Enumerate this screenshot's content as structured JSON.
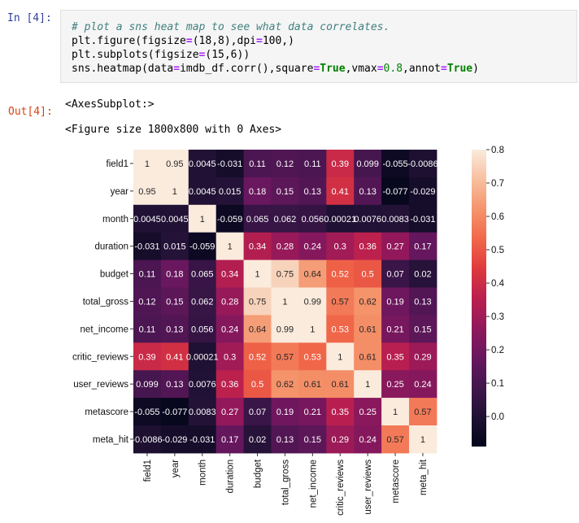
{
  "cell_in": {
    "prompt": "In [4]:",
    "code": {
      "comment": "# plot a sns heat map to see what data correlates.",
      "line1_a": "plt.figure(figsize",
      "line1_eq": "=",
      "line1_b": "(18,8),dpi",
      "line1_eq2": "=",
      "line1_c": "100,)",
      "line2_a": "plt.subplots(figsize",
      "line2_eq": "=",
      "line2_b": "(15,6))",
      "line3_a": "sns.heatmap(data",
      "line3_eq": "=",
      "line3_b": "imdb_df.corr(),square",
      "line3_eq2": "=",
      "line3_true1": "True",
      "line3_c": ",vmax",
      "line3_eq3": "=",
      "line3_num": "0.8",
      "line3_d": ",annot",
      "line3_eq4": "=",
      "line3_true2": "True",
      "line3_e": ")"
    }
  },
  "cell_out": {
    "prompt": "Out[4]:",
    "text1": "<AxesSubplot:>",
    "text2": "<Figure size 1800x800 with 0 Axes>"
  },
  "chart_data": {
    "type": "heatmap",
    "title": "",
    "variables": [
      "field1",
      "year",
      "month",
      "duration",
      "budget",
      "total_gross",
      "net_income",
      "critic_reviews",
      "user_reviews",
      "metascore",
      "meta_hit"
    ],
    "values": [
      [
        1,
        0.95,
        0.0045,
        -0.031,
        0.11,
        0.12,
        0.11,
        0.39,
        0.099,
        -0.055,
        -0.0086
      ],
      [
        0.95,
        1,
        0.0045,
        0.015,
        0.18,
        0.15,
        0.13,
        0.41,
        0.13,
        -0.077,
        -0.029
      ],
      [
        0.0045,
        0.0045,
        1,
        -0.059,
        0.065,
        0.062,
        0.056,
        0.00021,
        0.0076,
        0.0083,
        -0.031
      ],
      [
        -0.031,
        0.015,
        -0.059,
        1,
        0.34,
        0.28,
        0.24,
        0.3,
        0.36,
        0.27,
        0.17
      ],
      [
        0.11,
        0.18,
        0.065,
        0.34,
        1,
        0.75,
        0.64,
        0.52,
        0.5,
        0.07,
        0.02
      ],
      [
        0.12,
        0.15,
        0.062,
        0.28,
        0.75,
        1,
        0.99,
        0.57,
        0.62,
        0.19,
        0.13
      ],
      [
        0.11,
        0.13,
        0.056,
        0.24,
        0.64,
        0.99,
        1,
        0.53,
        0.61,
        0.21,
        0.15
      ],
      [
        0.39,
        0.41,
        0.00021,
        0.3,
        0.52,
        0.57,
        0.53,
        1,
        0.61,
        0.35,
        0.29
      ],
      [
        0.099,
        0.13,
        0.0076,
        0.36,
        0.5,
        0.62,
        0.61,
        0.61,
        1,
        0.25,
        0.24
      ],
      [
        -0.055,
        -0.077,
        0.0083,
        0.27,
        0.07,
        0.19,
        0.21,
        0.35,
        0.25,
        1,
        0.57
      ],
      [
        -0.0086,
        -0.029,
        -0.031,
        0.17,
        0.02,
        0.13,
        0.15,
        0.29,
        0.24,
        0.57,
        1
      ]
    ],
    "annotations": [
      [
        "1",
        "0.95",
        "0.0045",
        "-0.031",
        "0.11",
        "0.12",
        "0.11",
        "0.39",
        "0.099",
        "-0.055",
        "-0.0086"
      ],
      [
        "0.95",
        "1",
        "0.0045",
        "0.015",
        "0.18",
        "0.15",
        "0.13",
        "0.41",
        "0.13",
        "-0.077",
        "-0.029"
      ],
      [
        "0.0045",
        "0.0045",
        "1",
        "-0.059",
        "0.065",
        "0.062",
        "0.056",
        "0.00021",
        "0.0076",
        "0.0083",
        "-0.031"
      ],
      [
        "-0.031",
        "0.015",
        "-0.059",
        "1",
        "0.34",
        "0.28",
        "0.24",
        "0.3",
        "0.36",
        "0.27",
        "0.17"
      ],
      [
        "0.11",
        "0.18",
        "0.065",
        "0.34",
        "1",
        "0.75",
        "0.64",
        "0.52",
        "0.5",
        "0.07",
        "0.02"
      ],
      [
        "0.12",
        "0.15",
        "0.062",
        "0.28",
        "0.75",
        "1",
        "0.99",
        "0.57",
        "0.62",
        "0.19",
        "0.13"
      ],
      [
        "0.11",
        "0.13",
        "0.056",
        "0.24",
        "0.64",
        "0.99",
        "1",
        "0.53",
        "0.61",
        "0.21",
        "0.15"
      ],
      [
        "0.39",
        "0.41",
        "0.00021",
        "0.3",
        "0.52",
        "0.57",
        "0.53",
        "1",
        "0.61",
        "0.35",
        "0.29"
      ],
      [
        "0.099",
        "0.13",
        "0.0076",
        "0.36",
        "0.5",
        "0.62",
        "0.61",
        "0.61",
        "1",
        "0.25",
        "0.24"
      ],
      [
        "-0.055",
        "-0.077",
        "0.0083",
        "0.27",
        "0.07",
        "0.19",
        "0.21",
        "0.35",
        "0.25",
        "1",
        "0.57"
      ],
      [
        "-0.0086",
        "-0.029",
        "-0.031",
        "0.17",
        "0.02",
        "0.13",
        "0.15",
        "0.29",
        "0.24",
        "0.57",
        "1"
      ]
    ],
    "vmin": -0.09,
    "vmax": 0.8,
    "colormap": "rocket",
    "colorbar_ticks": [
      "0.0",
      "0.1",
      "0.2",
      "0.3",
      "0.4",
      "0.5",
      "0.6",
      "0.7",
      "0.8"
    ],
    "colorbar_tick_values": [
      0.0,
      0.1,
      0.2,
      0.3,
      0.4,
      0.5,
      0.6,
      0.7,
      0.8
    ]
  },
  "colors": {
    "prompt_in": "#303f9f",
    "prompt_out": "#d84315",
    "code_bg": "#f5f5f5"
  }
}
